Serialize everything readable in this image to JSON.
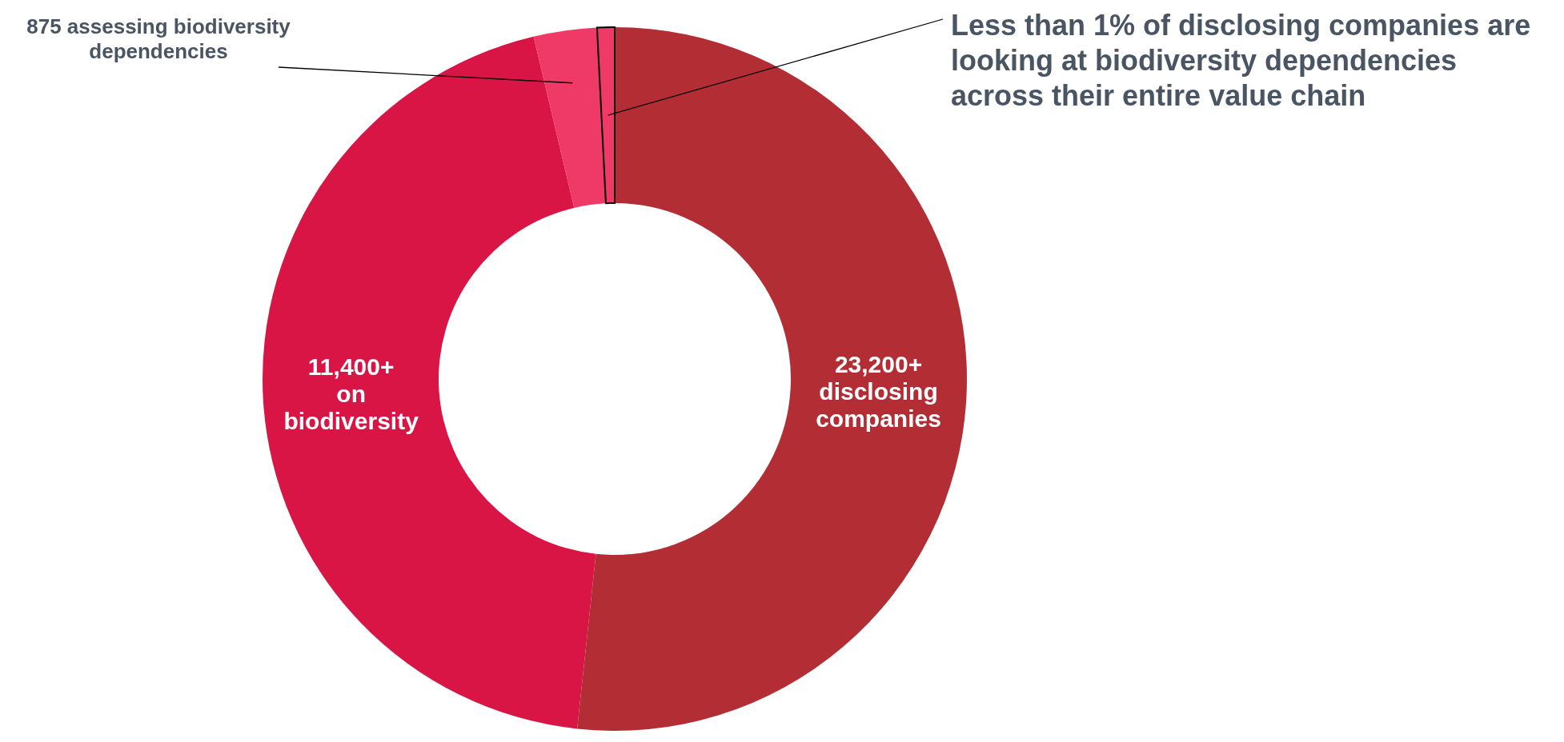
{
  "chart_data": {
    "type": "donut",
    "categories": [
      "23,200+ disclosing companies",
      "11,400+ on biodiversity",
      "875 assessing biodiversity dependencies",
      null
    ],
    "values": [
      51.7,
      44.6,
      2.9,
      0.8
    ],
    "colors": [
      "#b22d34",
      "#d81545",
      "#ef3a68",
      "#ef3a68"
    ],
    "annotations": [
      "Less than 1% of disclosing companies are looking at biodiversity dependencies across their entire value chain"
    ]
  }
}
